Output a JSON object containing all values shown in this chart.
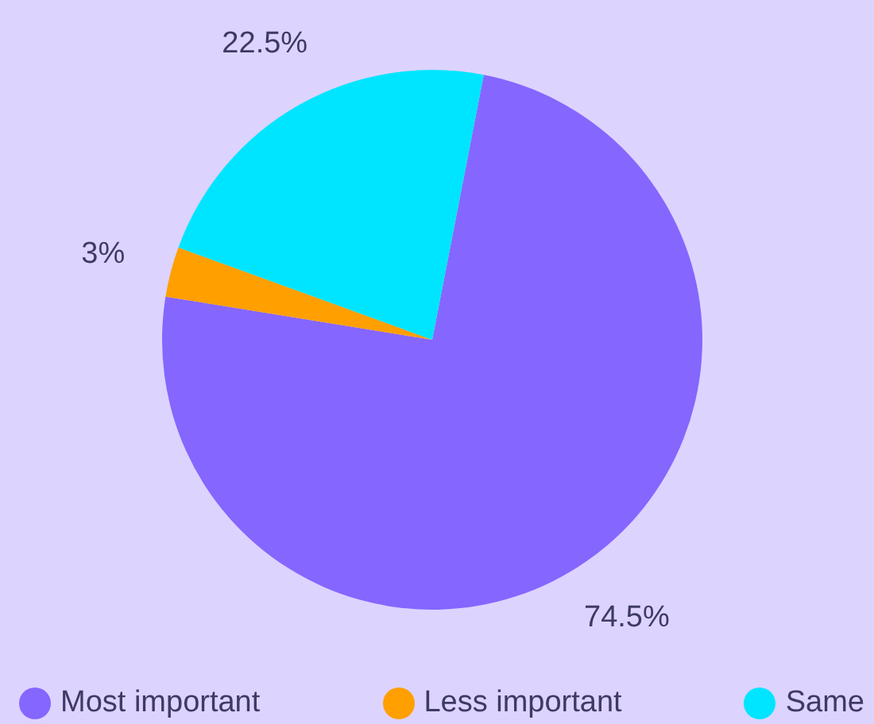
{
  "chart_data": {
    "type": "pie",
    "categories": [
      "Most important",
      "Less important",
      "Same"
    ],
    "values": [
      74.5,
      3,
      22.5
    ],
    "colors": [
      "#8566ff",
      "#ff9f00",
      "#00e5ff"
    ],
    "value_labels": [
      "74.5%",
      "3%",
      "22.5%"
    ],
    "legend": "bottom"
  }
}
